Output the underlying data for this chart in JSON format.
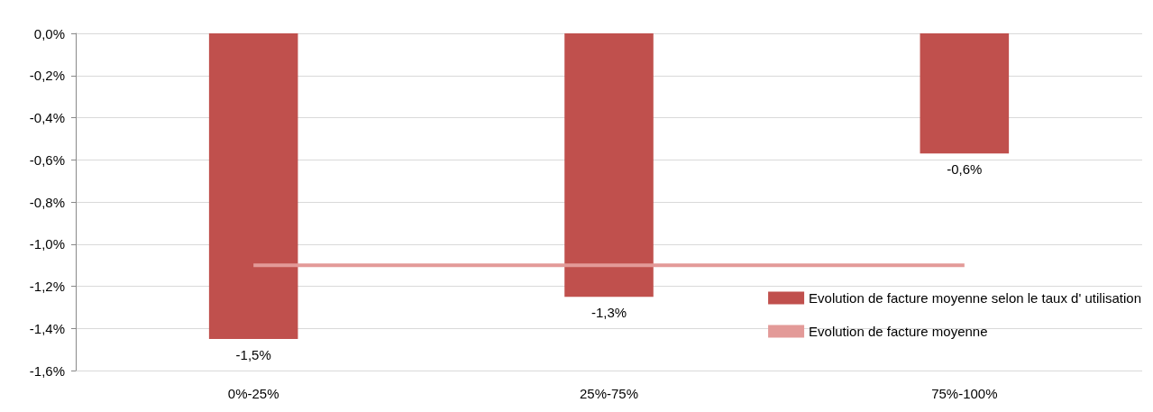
{
  "chart_data": {
    "type": "bar",
    "categories": [
      "0%-25%",
      "25%-75%",
      "75%-100%"
    ],
    "series": [
      {
        "name": "Evolution de facture moyenne selon le taux d' utilisation",
        "color": "#c0504d",
        "values": [
          -1.45,
          -1.25,
          -0.57
        ],
        "value_labels": [
          "-1,5%",
          "-1,3%",
          "-0,6%"
        ]
      },
      {
        "name": "Evolution de facture moyenne",
        "type": "line",
        "color": "#e39a98",
        "values": [
          -1.1,
          -1.1,
          -1.1
        ]
      }
    ],
    "ylim": [
      -1.6,
      0
    ],
    "yticks": [
      {
        "value": 0,
        "label": "0,0%"
      },
      {
        "value": -0.2,
        "label": "-0,2%"
      },
      {
        "value": -0.4,
        "label": "-0,4%"
      },
      {
        "value": -0.6,
        "label": "-0,6%"
      },
      {
        "value": -0.8,
        "label": "-0,8%"
      },
      {
        "value": -1.0,
        "label": "-1,0%"
      },
      {
        "value": -1.2,
        "label": "-1,2%"
      },
      {
        "value": -1.4,
        "label": "-1,4%"
      },
      {
        "value": -1.6,
        "label": "-1,6%"
      }
    ],
    "grid": "y",
    "legend": "bottom right",
    "marker": "none"
  }
}
